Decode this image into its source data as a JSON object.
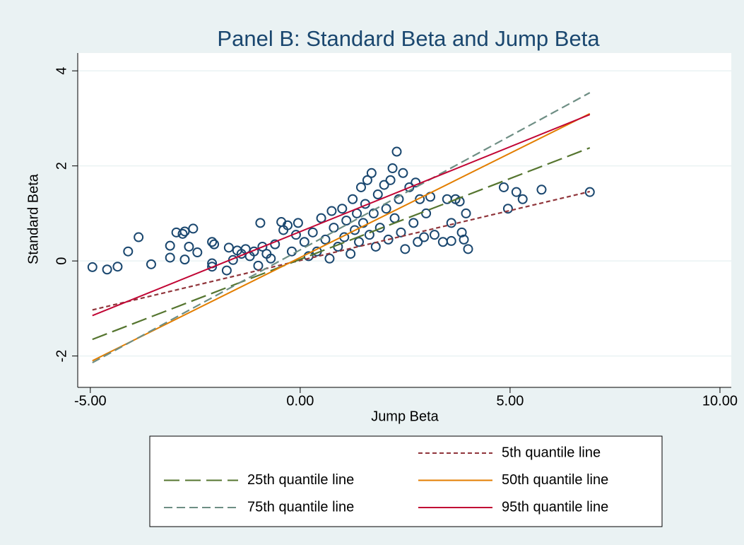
{
  "chart_data": {
    "type": "scatter",
    "title": "Panel B: Standard Beta and Jump Beta",
    "x_label": "Jump Beta",
    "y_label": "Standard Beta",
    "xlim": [
      -5.3,
      10.27
    ],
    "ylim": [
      -2.66,
      4.375
    ],
    "xticks": [
      {
        "value": -5,
        "label": "-5.00"
      },
      {
        "value": 0,
        "label": "0.00"
      },
      {
        "value": 5,
        "label": "5.00"
      },
      {
        "value": 10,
        "label": "10.00"
      }
    ],
    "yticks": [
      -2,
      0,
      2,
      4
    ],
    "grid": true,
    "series": [
      {
        "type": "scatter",
        "color": "#1a476f",
        "x": [
          -4.95,
          -4.6,
          -4.35,
          -4.1,
          -3.85,
          -3.55,
          -3.1,
          -3.1,
          -2.95,
          -2.8,
          -2.75,
          -2.75,
          -2.65,
          -2.55,
          -2.45,
          -2.1,
          -2.05,
          -2.1,
          -2.1,
          -1.75,
          -1.7,
          -1.6,
          -1.5,
          -1.4,
          -1.3,
          -1.2,
          -1.1,
          -1.0,
          -0.95,
          -0.9,
          -0.8,
          -0.7,
          -0.6,
          -0.45,
          -0.4,
          -0.3,
          -0.2,
          -0.1,
          -0.05,
          0.1,
          0.2,
          0.3,
          0.4,
          0.5,
          0.6,
          0.7,
          0.75,
          0.8,
          0.9,
          1.0,
          1.05,
          1.1,
          1.2,
          1.25,
          1.3,
          1.35,
          1.4,
          1.45,
          1.5,
          1.55,
          1.6,
          1.65,
          1.7,
          1.75,
          1.8,
          1.85,
          1.9,
          2.0,
          2.05,
          2.1,
          2.15,
          2.2,
          2.25,
          2.3,
          2.35,
          2.4,
          2.45,
          2.5,
          2.6,
          2.7,
          2.75,
          2.8,
          2.85,
          2.95,
          3.0,
          3.1,
          3.2,
          3.4,
          3.5,
          3.6,
          3.7,
          3.8,
          3.85,
          3.9,
          3.95,
          4.0,
          3.6,
          4.85,
          4.95,
          5.15,
          5.3,
          5.75,
          6.9
        ],
        "values": [
          -0.13,
          -0.18,
          -0.12,
          0.2,
          0.5,
          -0.07,
          0.32,
          0.07,
          0.6,
          0.57,
          0.62,
          0.03,
          0.3,
          0.68,
          0.18,
          0.4,
          0.35,
          -0.05,
          -0.12,
          -0.2,
          0.28,
          0.02,
          0.22,
          0.15,
          0.25,
          0.1,
          0.2,
          -0.1,
          0.8,
          0.3,
          0.15,
          0.05,
          0.35,
          0.82,
          0.65,
          0.75,
          0.2,
          0.55,
          0.8,
          0.4,
          0.1,
          0.6,
          0.2,
          0.9,
          0.45,
          0.05,
          1.05,
          0.7,
          0.3,
          1.1,
          0.5,
          0.85,
          0.15,
          1.3,
          0.65,
          1.0,
          0.4,
          1.55,
          0.8,
          1.2,
          1.7,
          0.55,
          1.85,
          1.0,
          0.3,
          1.4,
          0.7,
          1.6,
          1.1,
          0.45,
          1.7,
          1.95,
          0.9,
          2.3,
          1.3,
          0.6,
          1.85,
          0.25,
          1.55,
          0.8,
          1.65,
          0.4,
          1.3,
          0.5,
          1.0,
          1.35,
          0.55,
          0.4,
          1.3,
          0.8,
          1.3,
          1.25,
          0.6,
          0.45,
          1.0,
          0.25,
          0.42,
          1.55,
          1.1,
          1.45,
          1.3,
          1.5,
          1.45
        ]
      },
      {
        "type": "line",
        "name": "5th quantile line",
        "color": "#90353b",
        "dash": "6 4",
        "x": [
          -4.95,
          6.9
        ],
        "values": [
          -1.03,
          1.46
        ]
      },
      {
        "type": "line",
        "name": "25th quantile line",
        "color": "#55752f",
        "dash": "22 8",
        "x": [
          -4.95,
          6.9
        ],
        "values": [
          -1.65,
          2.38
        ]
      },
      {
        "type": "line",
        "name": "50th quantile line",
        "color": "#e37e00",
        "dash": "none",
        "x": [
          -4.95,
          6.9
        ],
        "values": [
          -2.1,
          3.1
        ]
      },
      {
        "type": "line",
        "name": "75th quantile line",
        "color": "#6e8e84",
        "dash": "12 6",
        "x": [
          -4.95,
          6.9
        ],
        "values": [
          -2.14,
          3.54
        ]
      },
      {
        "type": "line",
        "name": "95th quantile line",
        "color": "#c10534",
        "dash": "none",
        "x": [
          -4.95,
          6.9
        ],
        "values": [
          -1.15,
          3.08
        ]
      }
    ]
  }
}
